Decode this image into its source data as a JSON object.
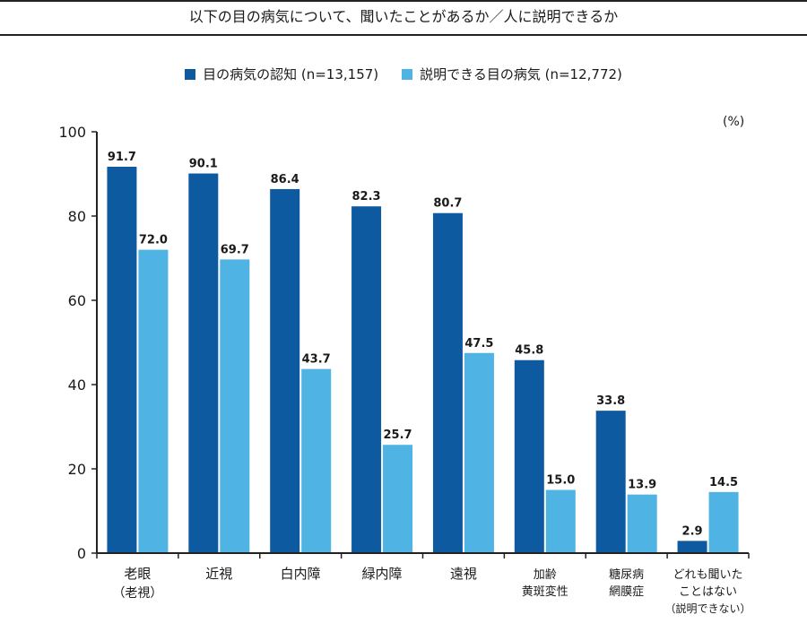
{
  "title": "以下の目の病気について、聞いたことがあるか／人に説明できるか",
  "unit": "(%)",
  "chart_data": {
    "type": "bar",
    "categories": [
      [
        "老眼",
        "（老視）"
      ],
      [
        "近視"
      ],
      [
        "白内障"
      ],
      [
        "緑内障"
      ],
      [
        "遠視"
      ],
      [
        "加齢",
        "黄斑変性"
      ],
      [
        "糖尿病",
        "網膜症"
      ],
      [
        "どれも聞いた",
        "ことはない",
        "（説明できない）"
      ]
    ],
    "series": [
      {
        "name": "目の病気の認知 (n=13,157)",
        "color": "#0e5aa0",
        "values": [
          91.7,
          90.1,
          86.4,
          82.3,
          80.7,
          45.8,
          33.8,
          2.9
        ]
      },
      {
        "name": "説明できる目の病気 (n=12,772)",
        "color": "#4fb3e3",
        "values": [
          72.0,
          69.7,
          43.7,
          25.7,
          47.5,
          15.0,
          13.9,
          14.5
        ]
      }
    ],
    "ylim": [
      0,
      100
    ],
    "yticks": [
      0,
      20,
      40,
      60,
      80,
      100
    ],
    "grid": false,
    "legend_position": "top-center"
  }
}
